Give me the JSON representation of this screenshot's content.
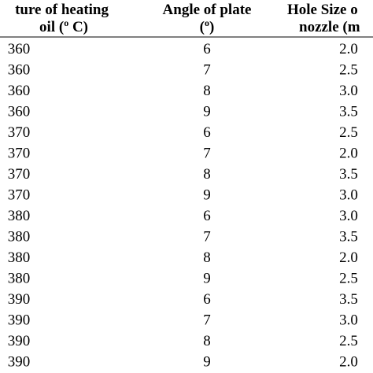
{
  "table": {
    "header": [
      {
        "line1": "ture of heating",
        "line2": [
          "oil (",
          "o",
          " C)"
        ]
      },
      {
        "line1": "Angle of plate",
        "line2": [
          "(",
          "o",
          ")"
        ]
      },
      {
        "line1": "Hole Size o",
        "line2": [
          "nozzle (m"
        ]
      }
    ],
    "rows": [
      [
        "360",
        "6",
        "2.0"
      ],
      [
        "360",
        "7",
        "2.5"
      ],
      [
        "360",
        "8",
        "3.0"
      ],
      [
        "360",
        "9",
        "3.5"
      ],
      [
        "370",
        "6",
        "2.5"
      ],
      [
        "370",
        "7",
        "2.0"
      ],
      [
        "370",
        "8",
        "3.5"
      ],
      [
        "370",
        "9",
        "3.0"
      ],
      [
        "380",
        "6",
        "3.0"
      ],
      [
        "380",
        "7",
        "3.5"
      ],
      [
        "380",
        "8",
        "2.0"
      ],
      [
        "380",
        "9",
        "2.5"
      ],
      [
        "390",
        "6",
        "3.5"
      ],
      [
        "390",
        "7",
        "3.0"
      ],
      [
        "390",
        "8",
        "2.5"
      ],
      [
        "390",
        "9",
        "2.0"
      ]
    ]
  }
}
